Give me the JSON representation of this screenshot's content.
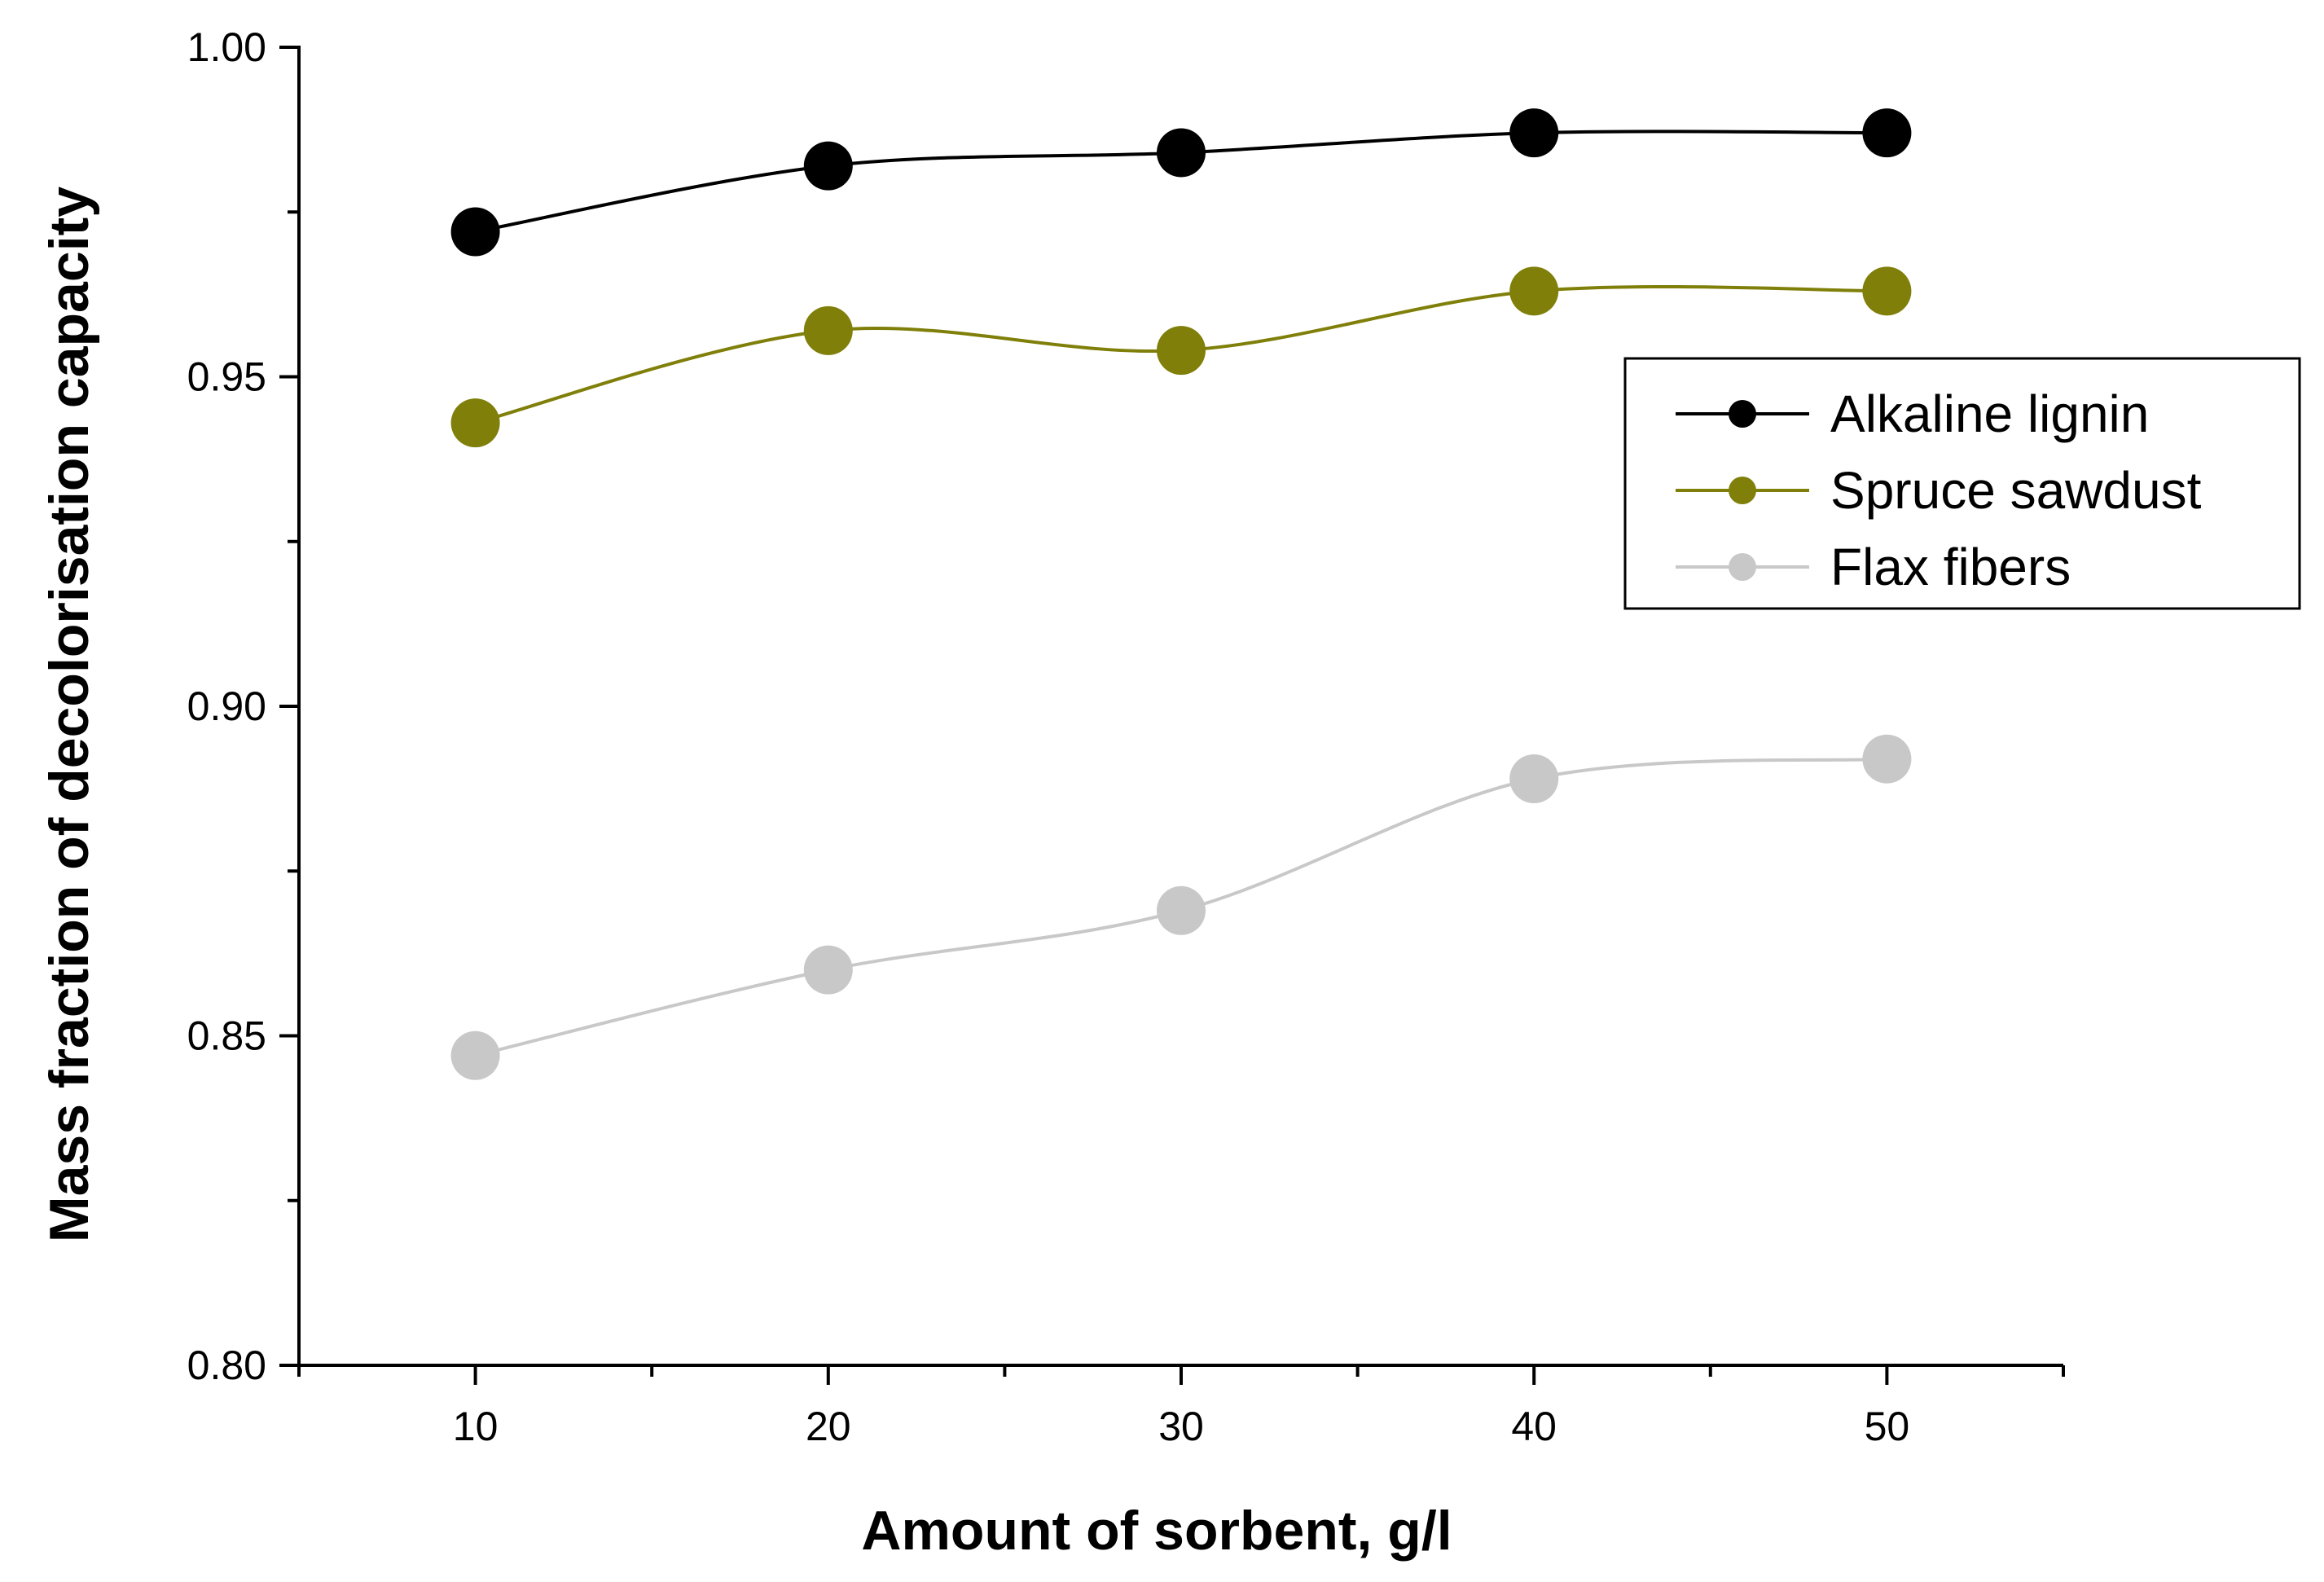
{
  "chart_data": {
    "type": "line",
    "title": "",
    "xlabel": "Amount of sorbent, g/l",
    "ylabel": "Mass fraction of decolorisation capacity",
    "xlim": [
      5,
      55
    ],
    "ylim": [
      0.8,
      1.0
    ],
    "x_major_ticks": [
      10,
      20,
      30,
      40,
      50
    ],
    "x_tick_labels": [
      "10",
      "20",
      "30",
      "40",
      "50"
    ],
    "x_minor_ticks": [
      5,
      15,
      25,
      35,
      45,
      55
    ],
    "y_major_ticks": [
      0.8,
      0.85,
      0.9,
      0.95,
      1.0
    ],
    "y_tick_labels": [
      "0.80",
      "0.85",
      "0.90",
      "0.95",
      "1.00"
    ],
    "y_minor_ticks": [
      0.825,
      0.875,
      0.925,
      0.975
    ],
    "grid": false,
    "legend_position": "top-right",
    "x": [
      10,
      20,
      30,
      40,
      50
    ],
    "series": [
      {
        "name": "Alkaline lignin",
        "color": "#000000",
        "values": [
          0.972,
          0.982,
          0.984,
          0.987,
          0.987
        ]
      },
      {
        "name": "Spruce sawdust",
        "color": "#7f7f0a",
        "values": [
          0.943,
          0.957,
          0.954,
          0.963,
          0.963
        ]
      },
      {
        "name": "Flax fibers",
        "color": "#c8c8c8",
        "values": [
          0.847,
          0.86,
          0.869,
          0.889,
          0.892
        ]
      }
    ]
  }
}
